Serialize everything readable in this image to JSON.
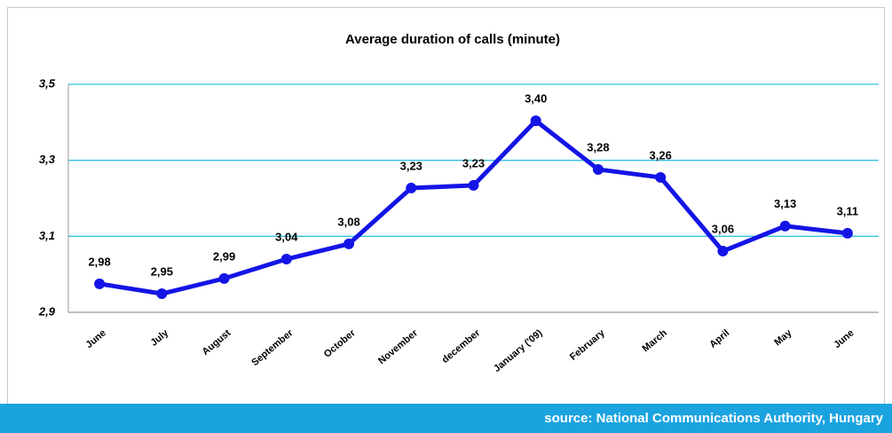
{
  "chart_data": {
    "type": "line",
    "title": "Average duration of calls (minute)",
    "categories": [
      "June",
      "July",
      "August",
      "September",
      "October",
      "November",
      "december",
      "January ('09)",
      "February",
      "March",
      "April",
      "May",
      "June"
    ],
    "series": [
      {
        "name": "Average duration",
        "color": "#1414e6",
        "values": [
          2.975,
          2.949,
          2.989,
          3.04,
          3.08,
          3.227,
          3.234,
          3.404,
          3.276,
          3.255,
          3.061,
          3.127,
          3.108
        ],
        "value_labels": [
          "2,98",
          "2,95",
          "2,99",
          "3,04",
          "3,08",
          "3,23",
          "3,23",
          "3,40",
          "3,28",
          "3,26",
          "3,06",
          "3,13",
          "3,11"
        ]
      }
    ],
    "ylim": [
      2.9,
      3.5
    ],
    "yticks": [
      {
        "value": 2.9,
        "label": "2,9"
      },
      {
        "value": 3.1,
        "label": "3,1"
      },
      {
        "value": 3.3,
        "label": "3,3"
      },
      {
        "value": 3.5,
        "label": "3,5"
      }
    ],
    "grid": true,
    "source": "source: National Communications Authority, Hungary"
  }
}
